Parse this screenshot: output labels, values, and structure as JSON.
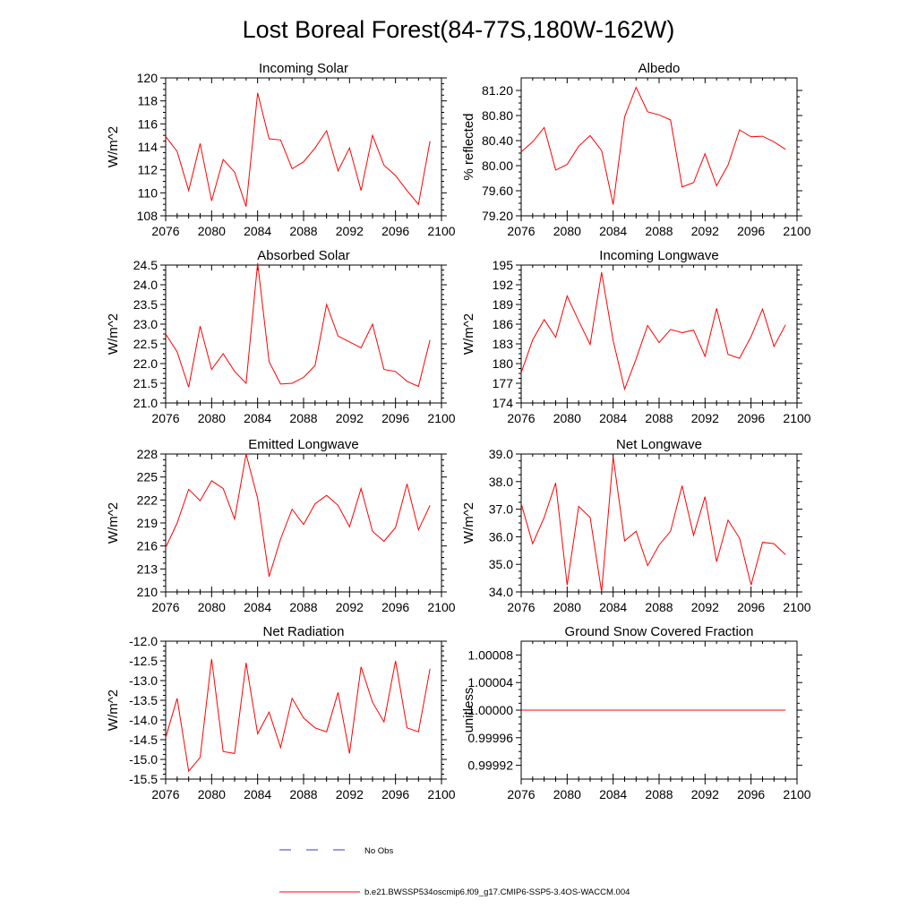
{
  "title": "Lost Boreal Forest(84-77S,180W-162W)",
  "colors": {
    "model_line": "#ff0000",
    "obs_line": "#3a3acf",
    "axis": "#000000"
  },
  "legend": {
    "obs_label": "No Obs",
    "model_label": "b.e21.BWSSP534oscmip6.f09_g17.CMIP6-SSP5-3.4OS-WACCM.004"
  },
  "chart_data": [
    {
      "type": "line",
      "title": "Incoming Solar",
      "ylabel": "W/m^2",
      "xlim": [
        2076,
        2100
      ],
      "ylim": [
        108,
        120
      ],
      "xticks": [
        "2076",
        "2080",
        "2084",
        "2088",
        "2092",
        "2096",
        "2100"
      ],
      "yticks": [
        "108",
        "110",
        "112",
        "114",
        "116",
        "118",
        "120"
      ],
      "x": [
        2076,
        2077,
        2078,
        2079,
        2080,
        2081,
        2082,
        2083,
        2084,
        2085,
        2086,
        2087,
        2088,
        2089,
        2090,
        2091,
        2092,
        2093,
        2094,
        2095,
        2096,
        2097,
        2098,
        2099
      ],
      "values": [
        114.9,
        113.6,
        110.2,
        114.3,
        109.3,
        112.9,
        111.8,
        108.8,
        118.7,
        114.7,
        114.6,
        112.1,
        112.7,
        113.9,
        115.4,
        111.9,
        113.9,
        110.2,
        115.0,
        112.4,
        111.5,
        110.2,
        109.0,
        114.5
      ]
    },
    {
      "type": "line",
      "title": "Albedo",
      "ylabel": "% reflected",
      "xlim": [
        2076,
        2100
      ],
      "ylim": [
        79.2,
        81.4
      ],
      "xticks": [
        "2076",
        "2080",
        "2084",
        "2088",
        "2092",
        "2096",
        "2100"
      ],
      "yticks": [
        "79.20",
        "79.60",
        "80.00",
        "80.40",
        "80.80",
        "81.20"
      ],
      "ytick_values": [
        79.2,
        79.6,
        80.0,
        80.4,
        80.8,
        81.2
      ],
      "x": [
        2076,
        2077,
        2078,
        2079,
        2080,
        2081,
        2082,
        2083,
        2084,
        2085,
        2086,
        2087,
        2088,
        2089,
        2090,
        2091,
        2092,
        2093,
        2094,
        2095,
        2096,
        2097,
        2098,
        2099
      ],
      "values": [
        80.22,
        80.38,
        80.61,
        79.93,
        80.02,
        80.31,
        80.48,
        80.24,
        79.38,
        80.78,
        81.25,
        80.86,
        80.81,
        80.73,
        79.66,
        79.73,
        80.19,
        79.68,
        80.01,
        80.57,
        80.46,
        80.47,
        80.38,
        80.26
      ]
    },
    {
      "type": "line",
      "title": "Absorbed Solar",
      "ylabel": "W/m^2",
      "xlim": [
        2076,
        2100
      ],
      "ylim": [
        21.0,
        24.5
      ],
      "xticks": [
        "2076",
        "2080",
        "2084",
        "2088",
        "2092",
        "2096",
        "2100"
      ],
      "yticks": [
        "21.0",
        "21.5",
        "22.0",
        "22.5",
        "23.0",
        "23.5",
        "24.0",
        "24.5"
      ],
      "x": [
        2076,
        2077,
        2078,
        2079,
        2080,
        2081,
        2082,
        2083,
        2084,
        2085,
        2086,
        2087,
        2088,
        2089,
        2090,
        2091,
        2092,
        2093,
        2094,
        2095,
        2096,
        2097,
        2098,
        2099
      ],
      "values": [
        22.75,
        22.3,
        21.4,
        22.95,
        21.85,
        22.25,
        21.8,
        21.5,
        24.55,
        22.05,
        21.48,
        21.5,
        21.65,
        21.95,
        23.5,
        22.7,
        22.55,
        22.4,
        23.0,
        21.85,
        21.8,
        21.55,
        21.42,
        22.6
      ]
    },
    {
      "type": "line",
      "title": "Incoming Longwave",
      "ylabel": "W/m^2",
      "xlim": [
        2076,
        2100
      ],
      "ylim": [
        174,
        195
      ],
      "xticks": [
        "2076",
        "2080",
        "2084",
        "2088",
        "2092",
        "2096",
        "2100"
      ],
      "yticks": [
        "174",
        "177",
        "180",
        "183",
        "186",
        "189",
        "192",
        "195"
      ],
      "x": [
        2076,
        2077,
        2078,
        2079,
        2080,
        2081,
        2082,
        2083,
        2084,
        2085,
        2086,
        2087,
        2088,
        2089,
        2090,
        2091,
        2092,
        2093,
        2094,
        2095,
        2096,
        2097,
        2098,
        2099
      ],
      "values": [
        178.6,
        183.6,
        186.7,
        184.0,
        190.3,
        186.5,
        182.9,
        193.9,
        183.5,
        176.1,
        180.7,
        185.8,
        183.2,
        185.2,
        184.7,
        185.1,
        181.1,
        188.4,
        181.4,
        180.8,
        184.1,
        188.3,
        182.6,
        185.9
      ]
    },
    {
      "type": "line",
      "title": "Emitted Longwave",
      "ylabel": "W/m^2",
      "xlim": [
        2076,
        2100
      ],
      "ylim": [
        210,
        228
      ],
      "xticks": [
        "2076",
        "2080",
        "2084",
        "2088",
        "2092",
        "2096",
        "2100"
      ],
      "yticks": [
        "210",
        "213",
        "216",
        "219",
        "222",
        "225",
        "228"
      ],
      "x": [
        2076,
        2077,
        2078,
        2079,
        2080,
        2081,
        2082,
        2083,
        2084,
        2085,
        2086,
        2087,
        2088,
        2089,
        2090,
        2091,
        2092,
        2093,
        2094,
        2095,
        2096,
        2097,
        2098,
        2099
      ],
      "values": [
        215.8,
        219.0,
        223.4,
        221.9,
        224.5,
        223.5,
        219.5,
        228.0,
        222.2,
        212.0,
        216.9,
        220.8,
        218.8,
        221.5,
        222.6,
        221.3,
        218.5,
        223.5,
        217.9,
        216.6,
        218.4,
        224.1,
        218.1,
        221.3
      ]
    },
    {
      "type": "line",
      "title": "Net Longwave",
      "ylabel": "W/m^2",
      "xlim": [
        2076,
        2100
      ],
      "ylim": [
        34.0,
        39.0
      ],
      "xticks": [
        "2076",
        "2080",
        "2084",
        "2088",
        "2092",
        "2096",
        "2100"
      ],
      "yticks": [
        "34.0",
        "35.0",
        "36.0",
        "37.0",
        "38.0",
        "39.0"
      ],
      "x": [
        2076,
        2077,
        2078,
        2079,
        2080,
        2081,
        2082,
        2083,
        2084,
        2085,
        2086,
        2087,
        2088,
        2089,
        2090,
        2091,
        2092,
        2093,
        2094,
        2095,
        2096,
        2097,
        2098,
        2099
      ],
      "values": [
        37.2,
        35.75,
        36.7,
        37.95,
        34.25,
        37.1,
        36.7,
        34.0,
        38.9,
        35.85,
        36.2,
        34.95,
        35.7,
        36.2,
        37.85,
        36.05,
        37.45,
        35.1,
        36.6,
        35.95,
        34.25,
        35.8,
        35.75,
        35.35
      ]
    },
    {
      "type": "line",
      "title": "Net Radiation",
      "ylabel": "W/m^2",
      "xlim": [
        2076,
        2100
      ],
      "ylim": [
        -15.5,
        -12.0
      ],
      "xticks": [
        "2076",
        "2080",
        "2084",
        "2088",
        "2092",
        "2096",
        "2100"
      ],
      "yticks": [
        "-15.5",
        "-15.0",
        "-14.5",
        "-14.0",
        "-13.5",
        "-13.0",
        "-12.5",
        "-12.0"
      ],
      "x": [
        2076,
        2077,
        2078,
        2079,
        2080,
        2081,
        2082,
        2083,
        2084,
        2085,
        2086,
        2087,
        2088,
        2089,
        2090,
        2091,
        2092,
        2093,
        2094,
        2095,
        2096,
        2097,
        2098,
        2099
      ],
      "values": [
        -14.45,
        -13.45,
        -15.3,
        -14.95,
        -12.45,
        -14.8,
        -14.85,
        -12.55,
        -14.35,
        -13.8,
        -14.7,
        -13.45,
        -13.95,
        -14.2,
        -14.3,
        -13.3,
        -14.85,
        -12.65,
        -13.55,
        -14.05,
        -12.5,
        -14.2,
        -14.3,
        -12.7
      ]
    },
    {
      "type": "line",
      "title": "Ground Snow Covered Fraction",
      "ylabel": "unitless",
      "xlim": [
        2076,
        2100
      ],
      "ylim": [
        0.9999,
        1.0001
      ],
      "xticks": [
        "2076",
        "2080",
        "2084",
        "2088",
        "2092",
        "2096",
        "2100"
      ],
      "yticks": [
        "0.99992",
        "0.99996",
        "1.00000",
        "1.00004",
        "1.00008"
      ],
      "ytick_values": [
        0.99992,
        0.99996,
        1.0,
        1.00004,
        1.00008
      ],
      "x": [
        2076,
        2099
      ],
      "values": [
        1.0,
        1.0
      ]
    }
  ]
}
